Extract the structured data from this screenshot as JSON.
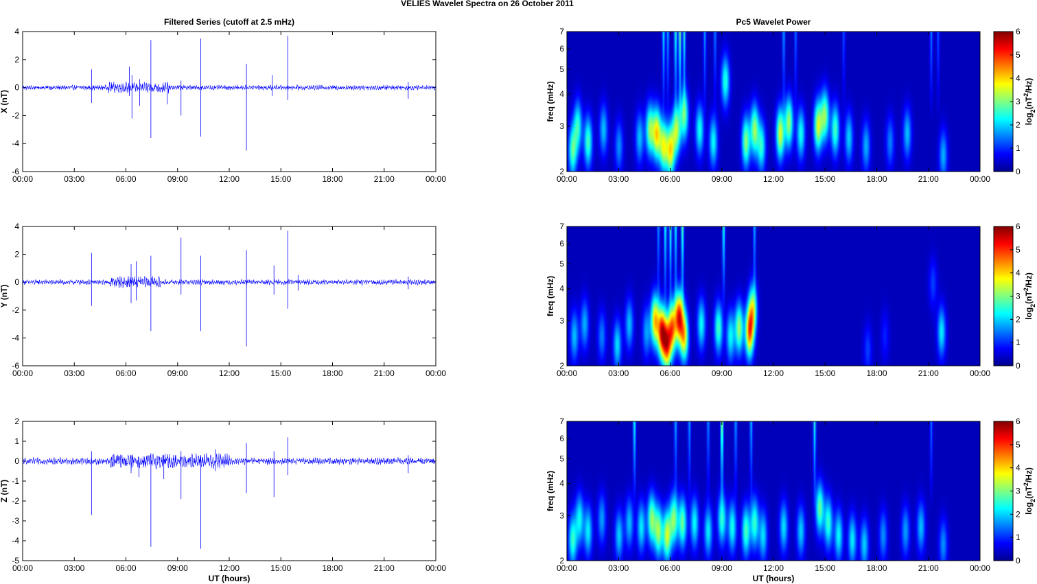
{
  "figure": {
    "title": "VELIES Wavelet Spectra on 26 October   2011",
    "left_title": "Filtered Series (cutoff at 2.5 mHz)",
    "right_title": "Pc5 Wavelet Power"
  },
  "chart_data": [
    {
      "type": "line",
      "panel": "X",
      "ylabel": "X (nT)",
      "xlabel": "",
      "xlim": [
        0,
        24
      ],
      "ylim": [
        -6,
        4
      ],
      "x_ticks": [
        "00:00",
        "03:00",
        "06:00",
        "09:00",
        "12:00",
        "15:00",
        "18:00",
        "21:00",
        "00:00"
      ],
      "y_ticks": [
        -6,
        -4,
        -2,
        0,
        2,
        4
      ],
      "line_color": "#0000ff",
      "noise_amplitude": 0.12,
      "active_window": [
        5,
        8.5
      ],
      "spikes": [
        {
          "t": 4.0,
          "up": 1.3,
          "down": -1.1
        },
        {
          "t": 6.2,
          "up": 1.5,
          "down": -0.6
        },
        {
          "t": 6.35,
          "up": 0.9,
          "down": -2.2
        },
        {
          "t": 6.8,
          "up": 0.6,
          "down": -1.3
        },
        {
          "t": 7.45,
          "up": 3.4,
          "down": -3.6
        },
        {
          "t": 8.4,
          "up": 0.4,
          "down": -1.2
        },
        {
          "t": 9.2,
          "up": 0.5,
          "down": -2.0
        },
        {
          "t": 10.35,
          "up": 3.5,
          "down": -3.5
        },
        {
          "t": 13.0,
          "up": 1.7,
          "down": -4.5
        },
        {
          "t": 14.5,
          "up": 0.9,
          "down": -0.6
        },
        {
          "t": 15.4,
          "up": 3.7,
          "down": -0.9
        },
        {
          "t": 22.4,
          "up": 0.4,
          "down": -0.8
        }
      ]
    },
    {
      "type": "line",
      "panel": "Y",
      "ylabel": "Y (nT)",
      "xlabel": "",
      "xlim": [
        0,
        24
      ],
      "ylim": [
        -6,
        4
      ],
      "x_ticks": [
        "00:00",
        "03:00",
        "06:00",
        "09:00",
        "12:00",
        "15:00",
        "18:00",
        "21:00",
        "00:00"
      ],
      "y_ticks": [
        -6,
        -4,
        -2,
        0,
        2,
        4
      ],
      "line_color": "#0000ff",
      "noise_amplitude": 0.13,
      "active_window": [
        5,
        8
      ],
      "spikes": [
        {
          "t": 4.0,
          "up": 2.1,
          "down": -1.7
        },
        {
          "t": 6.3,
          "up": 1.3,
          "down": -1.5
        },
        {
          "t": 6.6,
          "up": 1.5,
          "down": -1.3
        },
        {
          "t": 7.45,
          "up": 1.9,
          "down": -3.5
        },
        {
          "t": 9.2,
          "up": 3.2,
          "down": -0.9
        },
        {
          "t": 10.35,
          "up": 1.9,
          "down": -3.5
        },
        {
          "t": 13.0,
          "up": 2.3,
          "down": -4.6
        },
        {
          "t": 14.6,
          "up": 1.2,
          "down": -0.9
        },
        {
          "t": 15.4,
          "up": 3.7,
          "down": -1.9
        },
        {
          "t": 16.0,
          "up": 0.5,
          "down": -0.6
        },
        {
          "t": 22.4,
          "up": 0.4,
          "down": -0.5
        }
      ]
    },
    {
      "type": "line",
      "panel": "Z",
      "ylabel": "Z (nT)",
      "xlabel": "UT (hours)",
      "xlim": [
        0,
        24
      ],
      "ylim": [
        -5,
        2
      ],
      "x_ticks": [
        "00:00",
        "03:00",
        "06:00",
        "09:00",
        "12:00",
        "15:00",
        "18:00",
        "21:00",
        "00:00"
      ],
      "y_ticks": [
        -5,
        -4,
        -3,
        -2,
        -1,
        0,
        1,
        2
      ],
      "line_color": "#0000ff",
      "noise_amplitude": 0.12,
      "active_window": [
        5,
        12
      ],
      "spikes": [
        {
          "t": 4.0,
          "up": 0.5,
          "down": -2.7
        },
        {
          "t": 6.3,
          "up": 0.3,
          "down": -0.6
        },
        {
          "t": 6.75,
          "up": 0.2,
          "down": -0.8
        },
        {
          "t": 7.45,
          "up": 0.4,
          "down": -4.3
        },
        {
          "t": 8.2,
          "up": 0.3,
          "down": -0.9
        },
        {
          "t": 9.2,
          "up": 0.5,
          "down": -1.9
        },
        {
          "t": 10.35,
          "up": 0.3,
          "down": -4.4
        },
        {
          "t": 11.2,
          "up": 0.6,
          "down": -0.5
        },
        {
          "t": 13.0,
          "up": 0.9,
          "down": -1.6
        },
        {
          "t": 14.6,
          "up": 0.5,
          "down": -1.8
        },
        {
          "t": 15.4,
          "up": 1.2,
          "down": -0.7
        },
        {
          "t": 22.4,
          "up": 0.3,
          "down": -0.6
        }
      ]
    },
    {
      "type": "heatmap",
      "panel": "X",
      "ylabel": "freq (mHz)",
      "xlabel": "",
      "xlim": [
        0,
        24
      ],
      "ylim": [
        2,
        7
      ],
      "log_y": true,
      "x_ticks": [
        "00:00",
        "03:00",
        "06:00",
        "09:00",
        "12:00",
        "15:00",
        "18:00",
        "21:00",
        "00:00"
      ],
      "y_ticks": [
        2,
        3,
        4,
        5,
        6,
        7
      ],
      "colorbar_label": "log2(nT2/Hz)",
      "colorbar_ticks": [
        0,
        1,
        2,
        3,
        4,
        5,
        6
      ],
      "clim": [
        0,
        6
      ],
      "colormap": "jet",
      "blobs": [
        {
          "t": 0.3,
          "f": 2.4,
          "p": 2.5
        },
        {
          "t": 0.6,
          "f": 3.0,
          "p": 2.2
        },
        {
          "t": 1.2,
          "f": 2.6,
          "p": 2.4
        },
        {
          "t": 2.1,
          "f": 2.9,
          "p": 1.6
        },
        {
          "t": 3.0,
          "f": 2.5,
          "p": 1.3
        },
        {
          "t": 4.2,
          "f": 2.7,
          "p": 1.6
        },
        {
          "t": 4.8,
          "f": 2.9,
          "p": 2.8
        },
        {
          "t": 5.2,
          "f": 2.8,
          "p": 3.6
        },
        {
          "t": 5.6,
          "f": 2.5,
          "p": 3.2
        },
        {
          "t": 6.0,
          "f": 2.4,
          "p": 3.5
        },
        {
          "t": 6.35,
          "f": 2.9,
          "p": 3.0
        },
        {
          "t": 6.8,
          "f": 3.3,
          "p": 2.6
        },
        {
          "t": 7.7,
          "f": 2.9,
          "p": 2.1
        },
        {
          "t": 8.5,
          "f": 2.6,
          "p": 2.0
        },
        {
          "t": 9.2,
          "f": 4.5,
          "p": 2.2
        },
        {
          "t": 10.4,
          "f": 2.6,
          "p": 2.8
        },
        {
          "t": 10.9,
          "f": 2.9,
          "p": 2.9
        },
        {
          "t": 11.3,
          "f": 2.5,
          "p": 2.2
        },
        {
          "t": 12.4,
          "f": 2.8,
          "p": 3.3
        },
        {
          "t": 12.9,
          "f": 3.1,
          "p": 2.9
        },
        {
          "t": 13.6,
          "f": 2.8,
          "p": 2.1
        },
        {
          "t": 14.6,
          "f": 3.0,
          "p": 3.2
        },
        {
          "t": 15.0,
          "f": 3.3,
          "p": 2.8
        },
        {
          "t": 15.6,
          "f": 2.9,
          "p": 2.4
        },
        {
          "t": 16.4,
          "f": 2.7,
          "p": 1.7
        },
        {
          "t": 17.4,
          "f": 2.5,
          "p": 1.5
        },
        {
          "t": 18.8,
          "f": 2.6,
          "p": 1.2
        },
        {
          "t": 19.8,
          "f": 2.8,
          "p": 1.6
        },
        {
          "t": 21.9,
          "f": 2.3,
          "p": 1.5
        }
      ],
      "streaks": [
        {
          "t": 5.6,
          "p": 2.0
        },
        {
          "t": 5.85,
          "p": 1.6
        },
        {
          "t": 6.3,
          "p": 2.4
        },
        {
          "t": 6.55,
          "p": 2.8
        },
        {
          "t": 6.8,
          "p": 2.3
        },
        {
          "t": 8.0,
          "p": 1.5
        },
        {
          "t": 8.6,
          "p": 1.3
        },
        {
          "t": 12.6,
          "p": 1.5
        },
        {
          "t": 13.3,
          "p": 1.2
        },
        {
          "t": 16.1,
          "p": 1.0
        },
        {
          "t": 21.2,
          "p": 1.3
        },
        {
          "t": 21.6,
          "p": 1.0
        }
      ]
    },
    {
      "type": "heatmap",
      "panel": "Y",
      "ylabel": "freq (mHz)",
      "xlabel": "",
      "xlim": [
        0,
        24
      ],
      "ylim": [
        2,
        7
      ],
      "log_y": true,
      "x_ticks": [
        "00:00",
        "03:00",
        "06:00",
        "09:00",
        "12:00",
        "15:00",
        "18:00",
        "21:00",
        "00:00"
      ],
      "y_ticks": [
        2,
        3,
        4,
        5,
        6,
        7
      ],
      "colorbar_label": "log2(nT2/Hz)",
      "colorbar_ticks": [
        0,
        1,
        2,
        3,
        4,
        5,
        6
      ],
      "clim": [
        0,
        6
      ],
      "colormap": "jet",
      "blobs": [
        {
          "t": 0.4,
          "f": 2.6,
          "p": 1.6
        },
        {
          "t": 1.0,
          "f": 2.9,
          "p": 1.5
        },
        {
          "t": 2.0,
          "f": 2.6,
          "p": 1.2
        },
        {
          "t": 2.9,
          "f": 2.4,
          "p": 1.8
        },
        {
          "t": 3.6,
          "f": 2.9,
          "p": 1.6
        },
        {
          "t": 4.6,
          "f": 2.7,
          "p": 1.4
        },
        {
          "t": 5.1,
          "f": 3.0,
          "p": 3.8
        },
        {
          "t": 5.5,
          "f": 2.7,
          "p": 4.9
        },
        {
          "t": 5.8,
          "f": 2.4,
          "p": 4.3
        },
        {
          "t": 6.1,
          "f": 2.8,
          "p": 4.0
        },
        {
          "t": 6.5,
          "f": 3.1,
          "p": 4.8
        },
        {
          "t": 6.8,
          "f": 2.6,
          "p": 3.6
        },
        {
          "t": 7.8,
          "f": 2.9,
          "p": 2.0
        },
        {
          "t": 8.8,
          "f": 2.8,
          "p": 2.4
        },
        {
          "t": 9.5,
          "f": 2.6,
          "p": 2.0
        },
        {
          "t": 10.0,
          "f": 2.8,
          "p": 2.9
        },
        {
          "t": 10.6,
          "f": 2.7,
          "p": 4.2
        },
        {
          "t": 10.8,
          "f": 3.3,
          "p": 3.0
        },
        {
          "t": 17.5,
          "f": 2.3,
          "p": 0.8
        },
        {
          "t": 18.5,
          "f": 2.6,
          "p": 0.6
        },
        {
          "t": 21.3,
          "f": 4.2,
          "p": 0.8
        },
        {
          "t": 21.8,
          "f": 2.7,
          "p": 1.9
        }
      ],
      "streaks": [
        {
          "t": 5.3,
          "p": 1.4
        },
        {
          "t": 5.7,
          "p": 2.2
        },
        {
          "t": 6.0,
          "p": 2.4
        },
        {
          "t": 6.3,
          "p": 2.1
        },
        {
          "t": 6.7,
          "p": 2.6
        },
        {
          "t": 9.1,
          "p": 2.3
        },
        {
          "t": 10.9,
          "p": 1.6
        }
      ]
    },
    {
      "type": "heatmap",
      "panel": "Z",
      "ylabel": "freq (mHz)",
      "xlabel": "UT (hours)",
      "xlim": [
        0,
        24
      ],
      "ylim": [
        2,
        7
      ],
      "log_y": true,
      "x_ticks": [
        "00:00",
        "03:00",
        "06:00",
        "09:00",
        "12:00",
        "15:00",
        "18:00",
        "21:00",
        "00:00"
      ],
      "y_ticks": [
        2,
        3,
        4,
        5,
        6,
        7
      ],
      "colorbar_label": "log2(nT2/Hz)",
      "colorbar_ticks": [
        0,
        1,
        2,
        3,
        4,
        5,
        6
      ],
      "clim": [
        0,
        6
      ],
      "colormap": "jet",
      "blobs": [
        {
          "t": 0.3,
          "f": 2.4,
          "p": 2.3
        },
        {
          "t": 0.7,
          "f": 2.9,
          "p": 2.0
        },
        {
          "t": 1.2,
          "f": 2.6,
          "p": 1.9
        },
        {
          "t": 2.0,
          "f": 2.9,
          "p": 1.4
        },
        {
          "t": 3.0,
          "f": 2.5,
          "p": 1.7
        },
        {
          "t": 3.6,
          "f": 2.8,
          "p": 1.6
        },
        {
          "t": 4.3,
          "f": 2.7,
          "p": 1.9
        },
        {
          "t": 4.9,
          "f": 2.9,
          "p": 2.8
        },
        {
          "t": 5.3,
          "f": 2.6,
          "p": 2.9
        },
        {
          "t": 5.8,
          "f": 2.5,
          "p": 3.2
        },
        {
          "t": 6.2,
          "f": 2.9,
          "p": 2.8
        },
        {
          "t": 6.7,
          "f": 2.8,
          "p": 2.6
        },
        {
          "t": 7.4,
          "f": 2.8,
          "p": 2.0
        },
        {
          "t": 8.2,
          "f": 2.6,
          "p": 1.9
        },
        {
          "t": 9.0,
          "f": 2.9,
          "p": 2.3
        },
        {
          "t": 9.6,
          "f": 2.7,
          "p": 2.1
        },
        {
          "t": 10.4,
          "f": 2.6,
          "p": 2.4
        },
        {
          "t": 10.9,
          "f": 2.8,
          "p": 2.3
        },
        {
          "t": 11.4,
          "f": 2.5,
          "p": 1.8
        },
        {
          "t": 12.6,
          "f": 2.7,
          "p": 1.8
        },
        {
          "t": 13.6,
          "f": 2.6,
          "p": 1.7
        },
        {
          "t": 14.7,
          "f": 3.2,
          "p": 2.6
        },
        {
          "t": 15.2,
          "f": 2.8,
          "p": 2.3
        },
        {
          "t": 15.8,
          "f": 2.5,
          "p": 2.0
        },
        {
          "t": 16.6,
          "f": 2.4,
          "p": 1.9
        },
        {
          "t": 17.3,
          "f": 2.3,
          "p": 1.7
        },
        {
          "t": 18.4,
          "f": 2.5,
          "p": 1.3
        },
        {
          "t": 19.7,
          "f": 2.6,
          "p": 1.4
        },
        {
          "t": 20.6,
          "f": 2.7,
          "p": 1.6
        },
        {
          "t": 21.9,
          "f": 2.3,
          "p": 1.3
        }
      ],
      "streaks": [
        {
          "t": 3.9,
          "p": 2.2
        },
        {
          "t": 6.3,
          "p": 1.6
        },
        {
          "t": 7.1,
          "p": 1.5
        },
        {
          "t": 8.2,
          "p": 1.4
        },
        {
          "t": 9.0,
          "p": 3.2
        },
        {
          "t": 9.8,
          "p": 1.5
        },
        {
          "t": 10.7,
          "p": 1.7
        },
        {
          "t": 14.4,
          "p": 2.3
        },
        {
          "t": 21.2,
          "p": 1.2
        }
      ]
    }
  ]
}
